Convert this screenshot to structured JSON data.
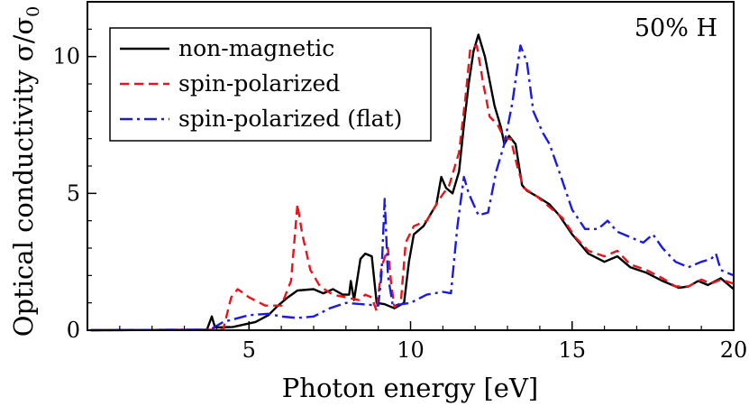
{
  "chart_data": {
    "type": "line",
    "xlabel": "Photon energy [eV]",
    "ylabel_main": "Optical conductivity σ/σ",
    "ylabel_sub": "0",
    "annotation": "50% H",
    "xlim": [
      0,
      20
    ],
    "ylim": [
      0,
      12
    ],
    "xticks": [
      5,
      10,
      15,
      20
    ],
    "yticks": [
      0,
      5,
      10
    ],
    "grid": false,
    "legend_position": "top-left",
    "series": [
      {
        "name": "non-magnetic",
        "color": "#000000",
        "dash": "solid",
        "points": [
          [
            0.1,
            0
          ],
          [
            3.7,
            0.02
          ],
          [
            3.85,
            0.5
          ],
          [
            3.95,
            0.1
          ],
          [
            4.5,
            0.12
          ],
          [
            5.2,
            0.3
          ],
          [
            5.6,
            0.55
          ],
          [
            5.9,
            0.9
          ],
          [
            6.2,
            1.2
          ],
          [
            6.5,
            1.45
          ],
          [
            7.0,
            1.5
          ],
          [
            7.3,
            1.35
          ],
          [
            7.6,
            1.5
          ],
          [
            7.9,
            1.3
          ],
          [
            8.1,
            1.3
          ],
          [
            8.15,
            1.8
          ],
          [
            8.25,
            1.1
          ],
          [
            8.45,
            2.6
          ],
          [
            8.6,
            2.8
          ],
          [
            8.8,
            2.7
          ],
          [
            8.95,
            1.0
          ],
          [
            9.2,
            0.95
          ],
          [
            9.5,
            0.8
          ],
          [
            9.8,
            1.0
          ],
          [
            9.95,
            2.5
          ],
          [
            10.1,
            3.5
          ],
          [
            10.4,
            3.8
          ],
          [
            10.6,
            4.2
          ],
          [
            10.8,
            4.6
          ],
          [
            10.95,
            5.6
          ],
          [
            11.1,
            5.2
          ],
          [
            11.3,
            5.0
          ],
          [
            11.5,
            5.8
          ],
          [
            11.65,
            7.5
          ],
          [
            11.8,
            9.0
          ],
          [
            11.95,
            10.2
          ],
          [
            12.1,
            10.8
          ],
          [
            12.3,
            10.0
          ],
          [
            12.6,
            8.2
          ],
          [
            12.8,
            7.4
          ],
          [
            12.9,
            6.8
          ],
          [
            13.05,
            7.1
          ],
          [
            13.25,
            6.8
          ],
          [
            13.45,
            5.3
          ],
          [
            13.6,
            5.1
          ],
          [
            13.9,
            4.9
          ],
          [
            14.3,
            4.6
          ],
          [
            14.6,
            4.2
          ],
          [
            15.0,
            3.5
          ],
          [
            15.5,
            2.8
          ],
          [
            16.0,
            2.5
          ],
          [
            16.4,
            2.7
          ],
          [
            16.8,
            2.3
          ],
          [
            17.3,
            2.1
          ],
          [
            17.8,
            1.8
          ],
          [
            18.3,
            1.55
          ],
          [
            18.6,
            1.6
          ],
          [
            18.9,
            1.8
          ],
          [
            19.2,
            1.65
          ],
          [
            19.6,
            1.9
          ],
          [
            20.0,
            1.5
          ]
        ]
      },
      {
        "name": "spin-polarized",
        "color": "#e8141a",
        "dash": "10,6",
        "points": [
          [
            0.1,
            0
          ],
          [
            4.2,
            0.02
          ],
          [
            4.45,
            1.2
          ],
          [
            4.65,
            1.5
          ],
          [
            5.0,
            1.2
          ],
          [
            5.5,
            0.9
          ],
          [
            6.0,
            0.9
          ],
          [
            6.3,
            1.8
          ],
          [
            6.5,
            4.6
          ],
          [
            6.65,
            3.5
          ],
          [
            6.9,
            2.2
          ],
          [
            7.2,
            1.6
          ],
          [
            7.6,
            1.3
          ],
          [
            8.0,
            1.2
          ],
          [
            8.4,
            1.1
          ],
          [
            8.6,
            1.3
          ],
          [
            8.8,
            1.2
          ],
          [
            8.95,
            0.7
          ],
          [
            9.1,
            2.3
          ],
          [
            9.3,
            3.0
          ],
          [
            9.4,
            1.7
          ],
          [
            9.5,
            0.85
          ],
          [
            9.7,
            1.0
          ],
          [
            9.85,
            3.2
          ],
          [
            10.1,
            3.8
          ],
          [
            10.5,
            4.0
          ],
          [
            10.9,
            4.8
          ],
          [
            11.2,
            5.3
          ],
          [
            11.5,
            6.5
          ],
          [
            11.7,
            8.5
          ],
          [
            11.85,
            10.3
          ],
          [
            12.05,
            10.4
          ],
          [
            12.25,
            9.0
          ],
          [
            12.45,
            7.8
          ],
          [
            12.7,
            7.5
          ],
          [
            12.9,
            7.0
          ],
          [
            13.1,
            7.0
          ],
          [
            13.3,
            6.0
          ],
          [
            13.5,
            5.2
          ],
          [
            13.9,
            4.9
          ],
          [
            14.3,
            4.5
          ],
          [
            14.7,
            4.1
          ],
          [
            15.1,
            3.4
          ],
          [
            15.5,
            2.9
          ],
          [
            16.0,
            2.7
          ],
          [
            16.4,
            2.9
          ],
          [
            16.8,
            2.4
          ],
          [
            17.3,
            2.2
          ],
          [
            17.8,
            1.9
          ],
          [
            18.2,
            1.6
          ],
          [
            18.6,
            1.6
          ],
          [
            19.0,
            1.85
          ],
          [
            19.3,
            1.7
          ],
          [
            19.6,
            1.85
          ],
          [
            20.0,
            1.7
          ]
        ]
      },
      {
        "name": "spin-polarized (flat)",
        "color": "#1a1ae0",
        "dash": "14,5,3,5",
        "points": [
          [
            0.1,
            0
          ],
          [
            3.8,
            0.02
          ],
          [
            4.2,
            0.3
          ],
          [
            5.0,
            0.55
          ],
          [
            5.6,
            0.6
          ],
          [
            6.0,
            0.5
          ],
          [
            6.5,
            0.45
          ],
          [
            7.0,
            0.5
          ],
          [
            7.5,
            0.8
          ],
          [
            8.0,
            1.0
          ],
          [
            8.5,
            0.95
          ],
          [
            9.0,
            0.9
          ],
          [
            9.1,
            2.0
          ],
          [
            9.2,
            4.8
          ],
          [
            9.3,
            2.0
          ],
          [
            9.45,
            0.9
          ],
          [
            10.0,
            1.0
          ],
          [
            10.5,
            1.3
          ],
          [
            11.0,
            1.4
          ],
          [
            11.25,
            1.35
          ],
          [
            11.45,
            3.8
          ],
          [
            11.65,
            5.6
          ],
          [
            11.8,
            5.0
          ],
          [
            12.1,
            4.2
          ],
          [
            12.4,
            4.3
          ],
          [
            12.65,
            5.8
          ],
          [
            12.9,
            6.8
          ],
          [
            13.15,
            8.3
          ],
          [
            13.4,
            10.4
          ],
          [
            13.6,
            9.8
          ],
          [
            13.8,
            8.0
          ],
          [
            14.1,
            7.2
          ],
          [
            14.3,
            6.8
          ],
          [
            14.6,
            5.8
          ],
          [
            15.0,
            4.4
          ],
          [
            15.4,
            3.7
          ],
          [
            15.8,
            3.7
          ],
          [
            16.1,
            4.0
          ],
          [
            16.4,
            3.6
          ],
          [
            16.8,
            3.4
          ],
          [
            17.2,
            3.2
          ],
          [
            17.5,
            3.5
          ],
          [
            17.8,
            3.0
          ],
          [
            18.2,
            2.5
          ],
          [
            18.6,
            2.3
          ],
          [
            19.0,
            2.5
          ],
          [
            19.3,
            2.6
          ],
          [
            19.45,
            2.8
          ],
          [
            19.6,
            2.2
          ],
          [
            19.8,
            2.1
          ],
          [
            20.0,
            2.0
          ]
        ]
      }
    ]
  }
}
